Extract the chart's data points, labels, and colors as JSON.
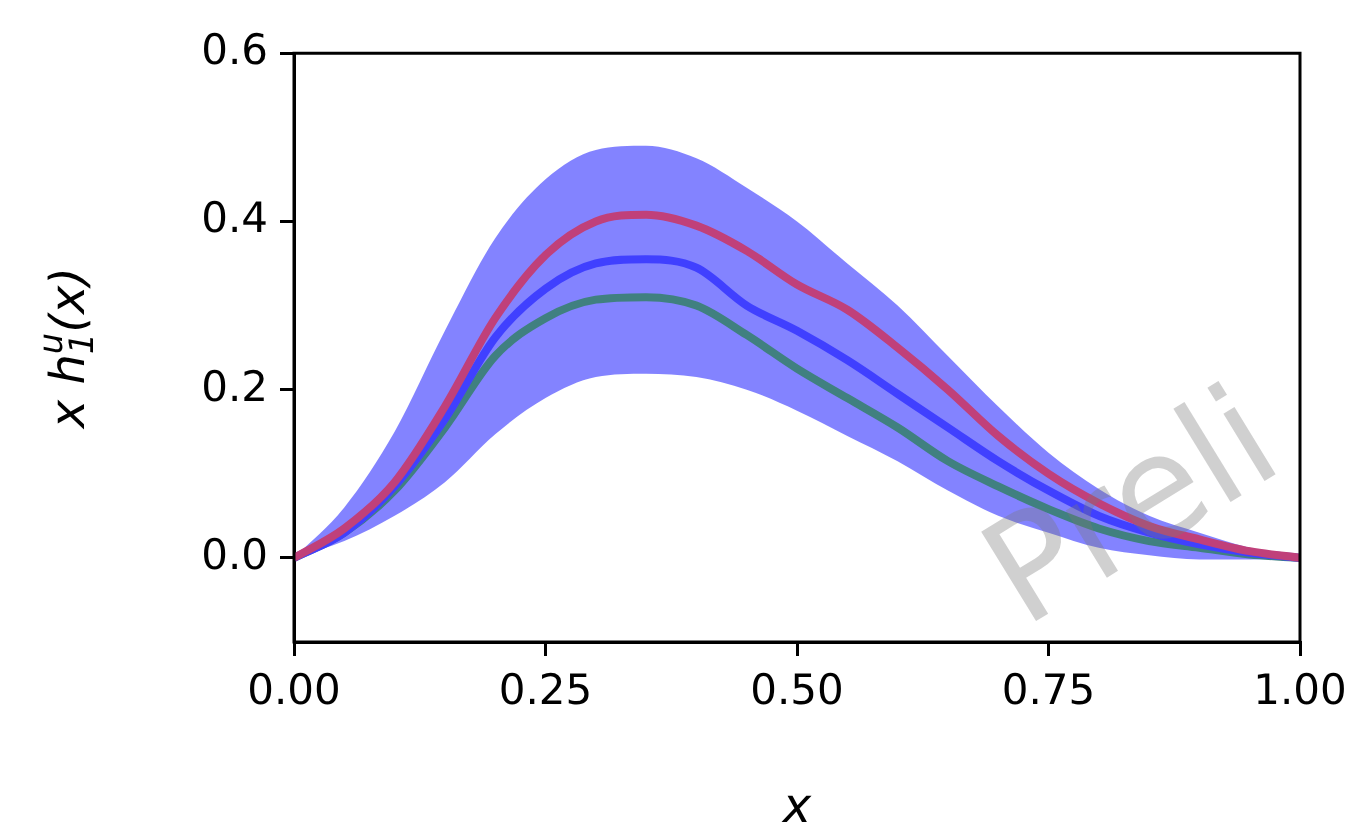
{
  "chart_data": {
    "type": "line",
    "xlabel": "x",
    "ylabel": "x h$_{1}$$^{u}$(x)",
    "x": [
      0,
      0.05,
      0.1,
      0.15,
      0.2,
      0.25,
      0.3,
      0.35,
      0.4,
      0.45,
      0.5,
      0.55,
      0.6,
      0.65,
      0.7,
      0.75,
      0.8,
      0.85,
      0.9,
      0.95,
      1
    ],
    "series": [
      {
        "color": "#c0407a",
        "values": [
          0,
          0.035,
          0.09,
          0.18,
          0.285,
          0.36,
          0.4,
          0.408,
          0.395,
          0.365,
          0.325,
          0.295,
          0.25,
          0.2,
          0.145,
          0.1,
          0.065,
          0.038,
          0.022,
          0.008,
          0
        ]
      },
      {
        "color": "#4040ff",
        "values": [
          0,
          0.03,
          0.085,
          0.165,
          0.262,
          0.32,
          0.35,
          0.355,
          0.345,
          0.3,
          0.27,
          0.235,
          0.195,
          0.155,
          0.115,
          0.08,
          0.05,
          0.03,
          0.016,
          0.006,
          0
        ],
        "upper": [
          0,
          0.06,
          0.15,
          0.27,
          0.38,
          0.45,
          0.485,
          0.49,
          0.475,
          0.44,
          0.4,
          0.35,
          0.3,
          0.24,
          0.18,
          0.125,
          0.082,
          0.05,
          0.03,
          0.012,
          0
        ],
        "lower": [
          0,
          0.02,
          0.05,
          0.09,
          0.147,
          0.19,
          0.215,
          0.219,
          0.215,
          0.2,
          0.175,
          0.145,
          0.115,
          0.08,
          0.05,
          0.03,
          0.012,
          0.003,
          -0.002,
          -0.002,
          0
        ]
      },
      {
        "color": "#408080",
        "values": [
          0,
          0.03,
          0.08,
          0.155,
          0.24,
          0.285,
          0.307,
          0.31,
          0.3,
          0.265,
          0.225,
          0.19,
          0.155,
          0.115,
          0.085,
          0.058,
          0.035,
          0.02,
          0.012,
          0.004,
          0
        ]
      }
    ],
    "xlim": [
      0,
      1
    ],
    "ylim": [
      -0.1,
      0.6
    ],
    "xticks": [
      {
        "value": 0,
        "label": "0.00"
      },
      {
        "value": 0.25,
        "label": "0.25"
      },
      {
        "value": 0.5,
        "label": "0.50"
      },
      {
        "value": 0.75,
        "label": "0.75"
      },
      {
        "value": 1,
        "label": "1.00"
      }
    ],
    "yticks": [
      {
        "value": 0,
        "label": "0.0"
      },
      {
        "value": 0.2,
        "label": "0.2"
      },
      {
        "value": 0.4,
        "label": "0.4"
      },
      {
        "value": 0.6,
        "label": "0.6"
      }
    ],
    "annotations": [
      "Preli"
    ]
  }
}
